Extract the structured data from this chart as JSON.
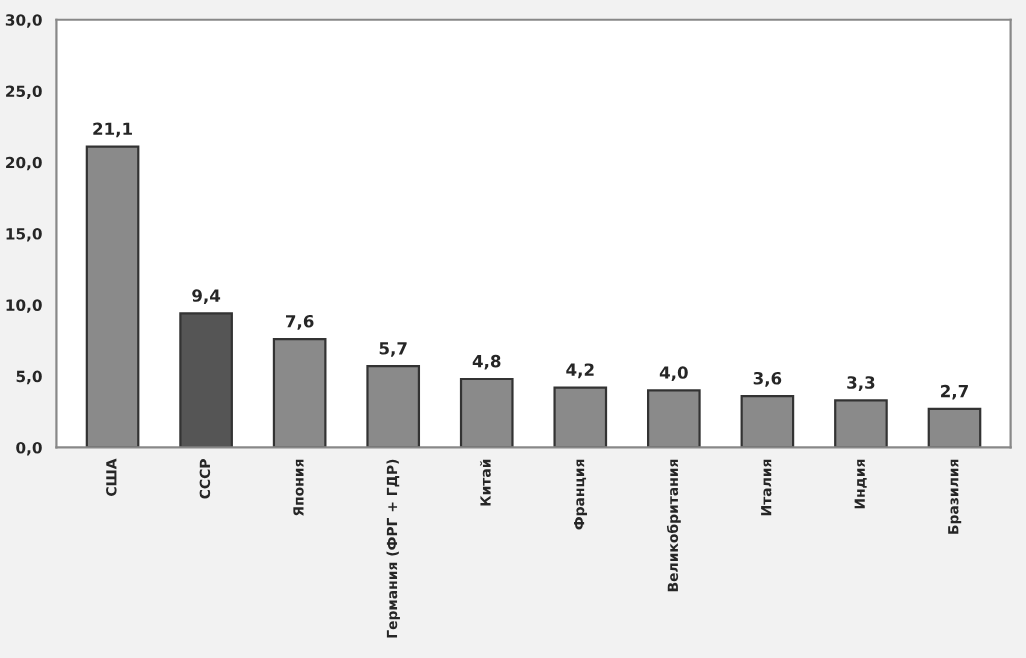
{
  "chart_data": {
    "type": "bar",
    "categories": [
      "США",
      "СССР",
      "Япония",
      "Германия (ФРГ + ГДР)",
      "Китай",
      "Франция",
      "Великобритания",
      "Италия",
      "Индия",
      "Бразилия"
    ],
    "values": [
      21.1,
      9.4,
      7.6,
      5.7,
      4.8,
      4.2,
      4.0,
      3.6,
      3.3,
      2.7
    ],
    "colors": [
      "#8a8a8a",
      "#555555",
      "#8a8a8a",
      "#8a8a8a",
      "#8a8a8a",
      "#8a8a8a",
      "#8a8a8a",
      "#8a8a8a",
      "#8a8a8a",
      "#8a8a8a"
    ],
    "value_labels": [
      "21,1",
      "9,4",
      "7,6",
      "5,7",
      "4,8",
      "4,2",
      "4,0",
      "3,6",
      "3,3",
      "2,7"
    ],
    "ylim": [
      0,
      30
    ],
    "yticks": [
      {
        "value": 0,
        "label": "0,0"
      },
      {
        "value": 5,
        "label": "5,0"
      },
      {
        "value": 10,
        "label": "10,0"
      },
      {
        "value": 15,
        "label": "15,0"
      },
      {
        "value": 20,
        "label": "20,0"
      },
      {
        "value": 25,
        "label": "25,0"
      },
      {
        "value": 30,
        "label": "30,0"
      }
    ],
    "grid": false,
    "legend": false
  }
}
